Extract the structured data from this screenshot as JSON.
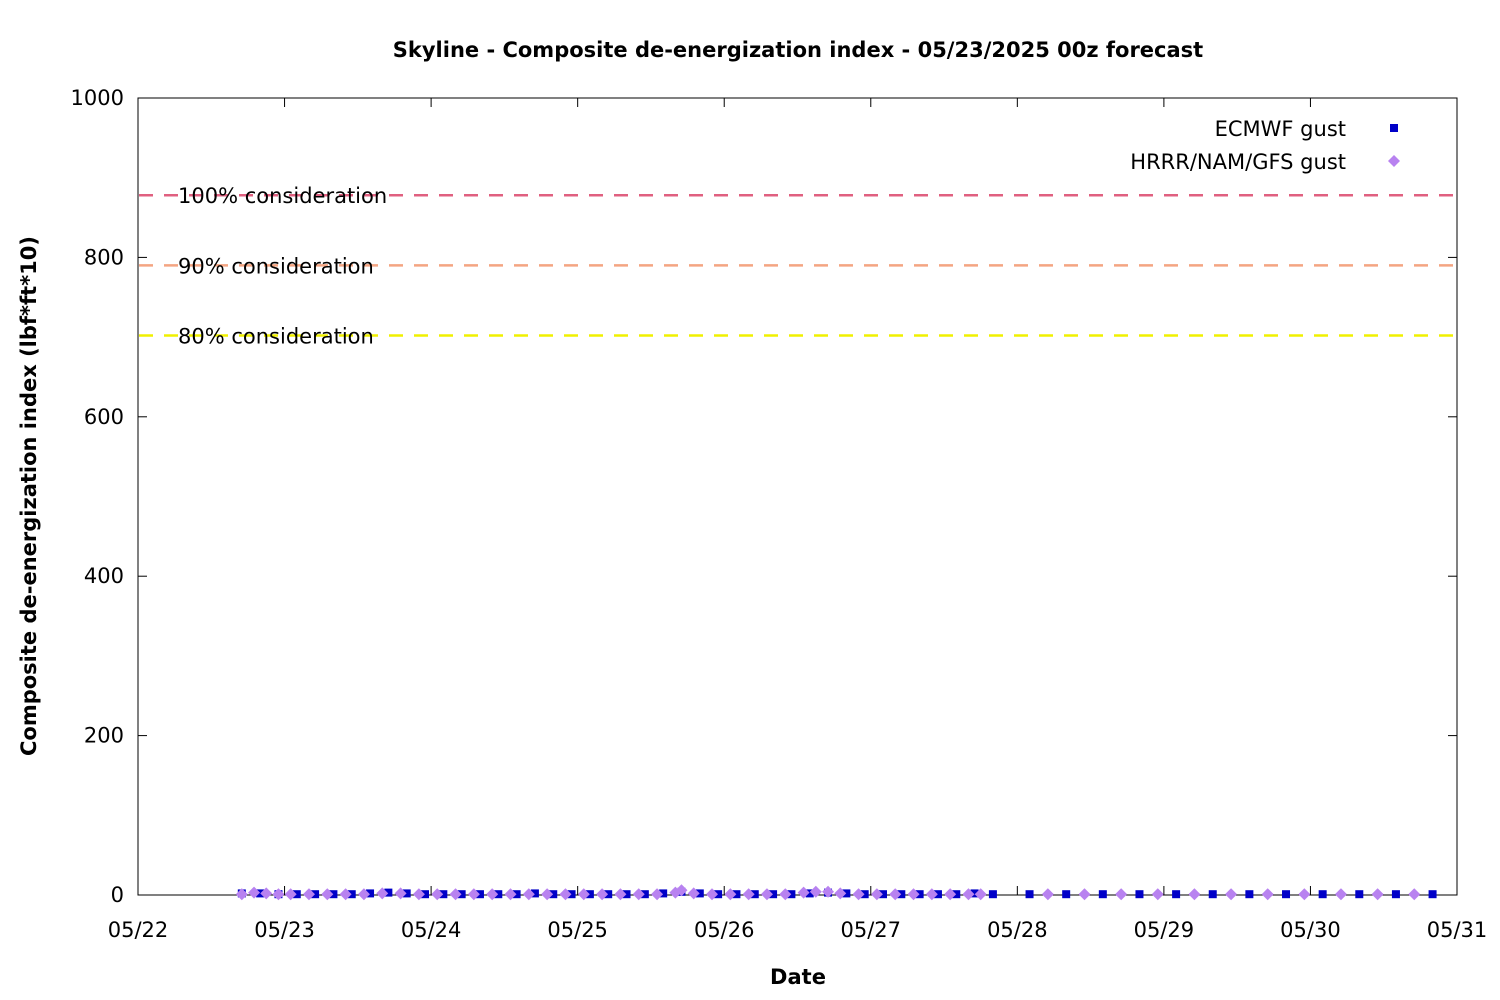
{
  "chart_data": {
    "type": "scatter",
    "title": "Skyline - Composite de-energization index - 05/23/2025 00z forecast",
    "xlabel": "Date",
    "ylabel": "Composite de-energization index (lbf*ft*10)",
    "xlim": [
      "05/22",
      "05/31"
    ],
    "ylim": [
      0,
      1000
    ],
    "x_ticks": [
      "05/22",
      "05/23",
      "05/24",
      "05/25",
      "05/26",
      "05/27",
      "05/28",
      "05/29",
      "05/30",
      "05/31"
    ],
    "y_ticks": [
      "0",
      "200",
      "400",
      "600",
      "800",
      "1000"
    ],
    "legend_position": "top-right",
    "grid": false,
    "thresholds": [
      {
        "label": "100% consideration",
        "value": 878,
        "color": "#e06080"
      },
      {
        "label": "90% consideration",
        "value": 790,
        "color": "#f4a582"
      },
      {
        "label": "80% consideration",
        "value": 702,
        "color": "#f0f000"
      }
    ],
    "series": [
      {
        "name": "ECMWF gust",
        "marker": "square",
        "color": "#0000c8",
        "points": [
          {
            "x": "05/22 17:00",
            "y": 2
          },
          {
            "x": "05/22 20:00",
            "y": 2
          },
          {
            "x": "05/22 23:00",
            "y": 1
          },
          {
            "x": "05/23 02:00",
            "y": 1
          },
          {
            "x": "05/23 05:00",
            "y": 1
          },
          {
            "x": "05/23 08:00",
            "y": 1
          },
          {
            "x": "05/23 11:00",
            "y": 1
          },
          {
            "x": "05/23 14:00",
            "y": 2
          },
          {
            "x": "05/23 17:00",
            "y": 3
          },
          {
            "x": "05/23 20:00",
            "y": 2
          },
          {
            "x": "05/23 23:00",
            "y": 1
          },
          {
            "x": "05/24 02:00",
            "y": 1
          },
          {
            "x": "05/24 05:00",
            "y": 1
          },
          {
            "x": "05/24 08:00",
            "y": 1
          },
          {
            "x": "05/24 11:00",
            "y": 1
          },
          {
            "x": "05/24 14:00",
            "y": 1
          },
          {
            "x": "05/24 17:00",
            "y": 2
          },
          {
            "x": "05/24 20:00",
            "y": 1
          },
          {
            "x": "05/24 23:00",
            "y": 1
          },
          {
            "x": "05/25 02:00",
            "y": 1
          },
          {
            "x": "05/25 05:00",
            "y": 1
          },
          {
            "x": "05/25 08:00",
            "y": 1
          },
          {
            "x": "05/25 11:00",
            "y": 1
          },
          {
            "x": "05/25 14:00",
            "y": 2
          },
          {
            "x": "05/25 17:00",
            "y": 4
          },
          {
            "x": "05/25 20:00",
            "y": 2
          },
          {
            "x": "05/25 23:00",
            "y": 1
          },
          {
            "x": "05/26 02:00",
            "y": 1
          },
          {
            "x": "05/26 05:00",
            "y": 1
          },
          {
            "x": "05/26 08:00",
            "y": 1
          },
          {
            "x": "05/26 11:00",
            "y": 1
          },
          {
            "x": "05/26 14:00",
            "y": 2
          },
          {
            "x": "05/26 17:00",
            "y": 3
          },
          {
            "x": "05/26 20:00",
            "y": 2
          },
          {
            "x": "05/26 23:00",
            "y": 1
          },
          {
            "x": "05/27 02:00",
            "y": 1
          },
          {
            "x": "05/27 05:00",
            "y": 1
          },
          {
            "x": "05/27 08:00",
            "y": 1
          },
          {
            "x": "05/27 11:00",
            "y": 1
          },
          {
            "x": "05/27 14:00",
            "y": 1
          },
          {
            "x": "05/27 17:00",
            "y": 2
          },
          {
            "x": "05/27 20:00",
            "y": 1
          },
          {
            "x": "05/28 02:00",
            "y": 1
          },
          {
            "x": "05/28 08:00",
            "y": 1
          },
          {
            "x": "05/28 14:00",
            "y": 1
          },
          {
            "x": "05/28 20:00",
            "y": 1
          },
          {
            "x": "05/29 02:00",
            "y": 1
          },
          {
            "x": "05/29 08:00",
            "y": 1
          },
          {
            "x": "05/29 14:00",
            "y": 1
          },
          {
            "x": "05/29 20:00",
            "y": 1
          },
          {
            "x": "05/30 02:00",
            "y": 1
          },
          {
            "x": "05/30 08:00",
            "y": 1
          },
          {
            "x": "05/30 14:00",
            "y": 1
          },
          {
            "x": "05/30 20:00",
            "y": 1
          }
        ]
      },
      {
        "name": "HRRR/NAM/GFS gust",
        "marker": "diamond",
        "color": "#b882f0",
        "points": [
          {
            "x": "05/22 17:00",
            "y": 1
          },
          {
            "x": "05/22 19:00",
            "y": 3
          },
          {
            "x": "05/22 21:00",
            "y": 2
          },
          {
            "x": "05/22 23:00",
            "y": 1
          },
          {
            "x": "05/23 01:00",
            "y": 1
          },
          {
            "x": "05/23 04:00",
            "y": 1
          },
          {
            "x": "05/23 07:00",
            "y": 1
          },
          {
            "x": "05/23 10:00",
            "y": 1
          },
          {
            "x": "05/23 13:00",
            "y": 1
          },
          {
            "x": "05/23 16:00",
            "y": 2
          },
          {
            "x": "05/23 19:00",
            "y": 2
          },
          {
            "x": "05/23 22:00",
            "y": 1
          },
          {
            "x": "05/24 01:00",
            "y": 1
          },
          {
            "x": "05/24 04:00",
            "y": 1
          },
          {
            "x": "05/24 07:00",
            "y": 1
          },
          {
            "x": "05/24 10:00",
            "y": 1
          },
          {
            "x": "05/24 13:00",
            "y": 1
          },
          {
            "x": "05/24 16:00",
            "y": 1
          },
          {
            "x": "05/24 19:00",
            "y": 1
          },
          {
            "x": "05/24 22:00",
            "y": 1
          },
          {
            "x": "05/25 01:00",
            "y": 1
          },
          {
            "x": "05/25 04:00",
            "y": 1
          },
          {
            "x": "05/25 07:00",
            "y": 1
          },
          {
            "x": "05/25 10:00",
            "y": 1
          },
          {
            "x": "05/25 13:00",
            "y": 1
          },
          {
            "x": "05/25 16:00",
            "y": 3
          },
          {
            "x": "05/25 17:00",
            "y": 6
          },
          {
            "x": "05/25 19:00",
            "y": 2
          },
          {
            "x": "05/25 22:00",
            "y": 1
          },
          {
            "x": "05/26 01:00",
            "y": 1
          },
          {
            "x": "05/26 04:00",
            "y": 1
          },
          {
            "x": "05/26 07:00",
            "y": 1
          },
          {
            "x": "05/26 10:00",
            "y": 1
          },
          {
            "x": "05/26 13:00",
            "y": 3
          },
          {
            "x": "05/26 15:00",
            "y": 4
          },
          {
            "x": "05/26 17:00",
            "y": 4
          },
          {
            "x": "05/26 19:00",
            "y": 2
          },
          {
            "x": "05/26 22:00",
            "y": 1
          },
          {
            "x": "05/27 01:00",
            "y": 1
          },
          {
            "x": "05/27 04:00",
            "y": 1
          },
          {
            "x": "05/27 07:00",
            "y": 1
          },
          {
            "x": "05/27 10:00",
            "y": 1
          },
          {
            "x": "05/27 13:00",
            "y": 1
          },
          {
            "x": "05/27 16:00",
            "y": 1
          },
          {
            "x": "05/27 18:00",
            "y": 1
          },
          {
            "x": "05/28 05:00",
            "y": 1
          },
          {
            "x": "05/28 11:00",
            "y": 1
          },
          {
            "x": "05/28 17:00",
            "y": 1
          },
          {
            "x": "05/28 23:00",
            "y": 1
          },
          {
            "x": "05/29 05:00",
            "y": 1
          },
          {
            "x": "05/29 11:00",
            "y": 1
          },
          {
            "x": "05/29 17:00",
            "y": 1
          },
          {
            "x": "05/29 23:00",
            "y": 1
          },
          {
            "x": "05/30 05:00",
            "y": 1
          },
          {
            "x": "05/30 11:00",
            "y": 1
          },
          {
            "x": "05/30 17:00",
            "y": 1
          }
        ]
      }
    ]
  }
}
